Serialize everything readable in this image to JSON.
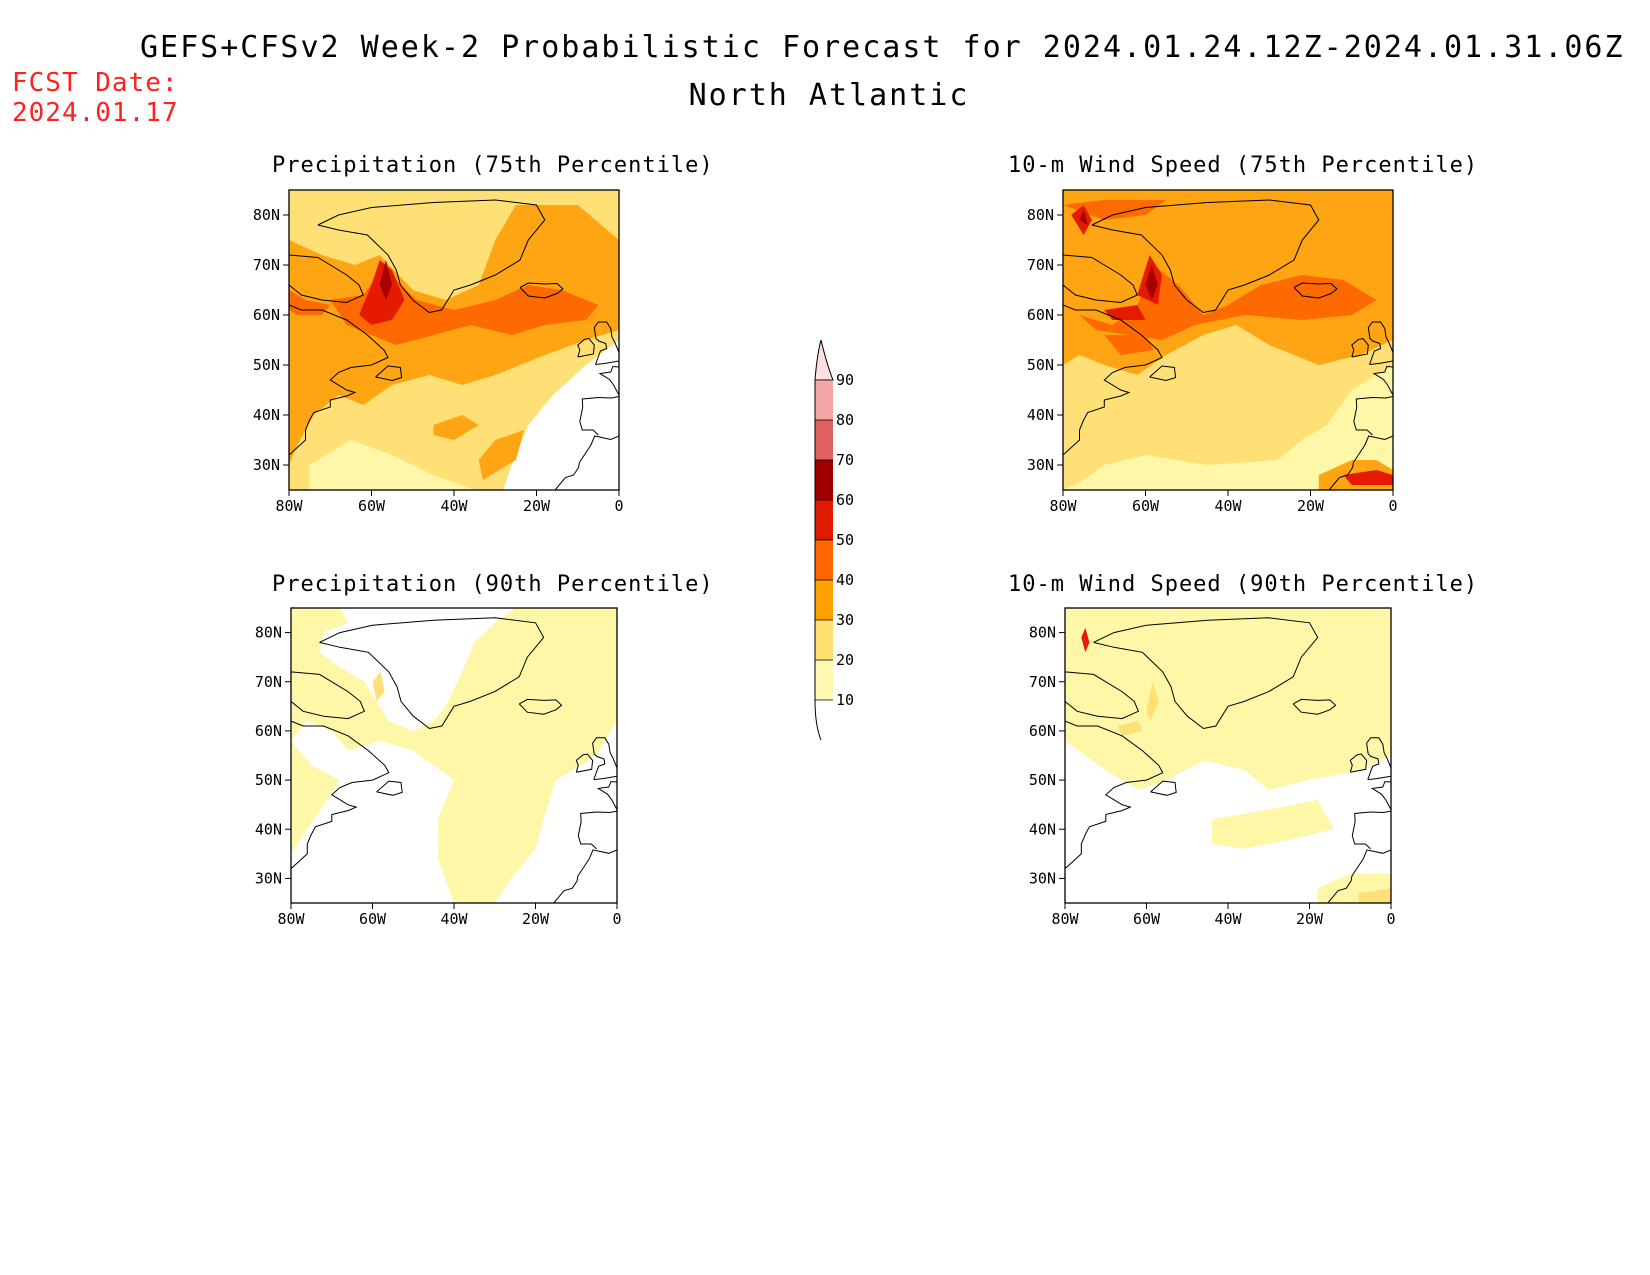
{
  "header": {
    "title": "GEFS+CFSv2 Week-2 Probabilistic Forecast for 2024.01.24.12Z-2024.01.31.06Z",
    "region": "North Atlantic",
    "fcst_label": "FCST Date:",
    "fcst_date": "2024.01.17"
  },
  "axes": {
    "lat_ticks": [
      "80N",
      "70N",
      "60N",
      "50N",
      "40N",
      "30N"
    ],
    "lon_ticks": [
      "80W",
      "60W",
      "40W",
      "20W",
      "0"
    ]
  },
  "panels": [
    {
      "title": "Precipitation (75th Percentile)",
      "variable": "precipitation",
      "percentile": 75
    },
    {
      "title": "10-m Wind Speed (75th Percentile)",
      "variable": "wind",
      "percentile": 75
    },
    {
      "title": "Precipitation (90th Percentile)",
      "variable": "precipitation",
      "percentile": 90
    },
    {
      "title": "10-m Wind Speed (90th Percentile)",
      "variable": "wind",
      "percentile": 90
    }
  ],
  "colorbar": {
    "labels": [
      "90",
      "80",
      "70",
      "60",
      "50",
      "40",
      "30",
      "20",
      "10"
    ],
    "colors": [
      "#ffe0e0",
      "#f4a6a6",
      "#e06060",
      "#a00000",
      "#e01a00",
      "#ff6600",
      "#ffa000",
      "#ffe070",
      "#fff8b0"
    ]
  },
  "fill_colors": {
    "c10": "#fff7a8",
    "c20": "#ffe077",
    "c30": "#ffa514",
    "c40": "#ff6a00",
    "c50": "#e41b00",
    "c60": "#a60000",
    "land_line": "#000000",
    "fcst_text": "#ff2020"
  }
}
